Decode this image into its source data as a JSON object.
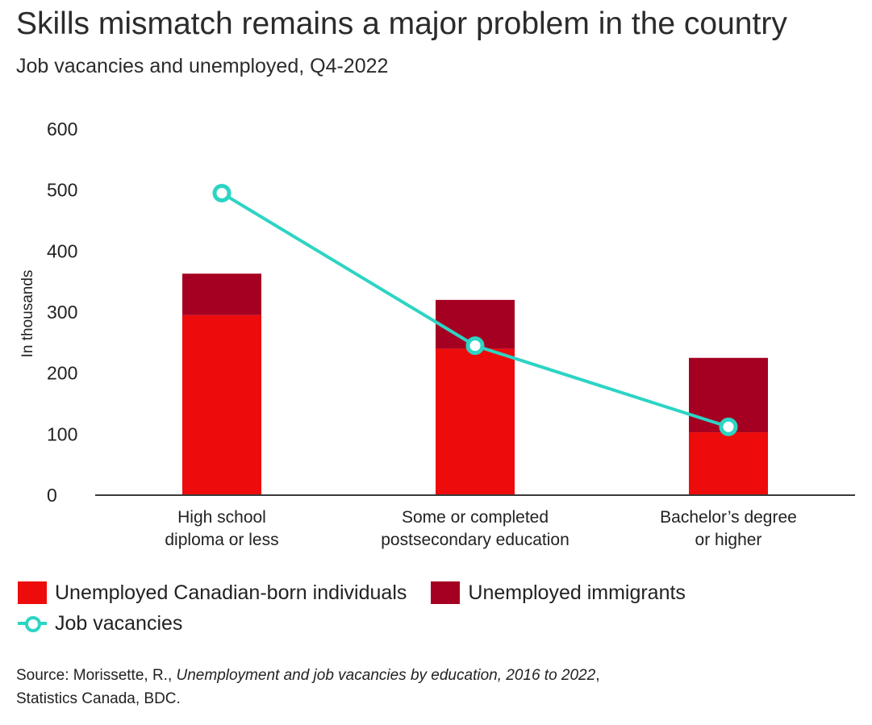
{
  "chart_data": {
    "type": "bar",
    "stacked": true,
    "title": "Skills mismatch remains a major problem in the country",
    "subtitle": "Job vacancies and unemployed, Q4-2022",
    "ylabel": "In thousands",
    "xlabel": "",
    "ylim": [
      0,
      600
    ],
    "yticks": [
      0,
      100,
      200,
      300,
      400,
      500,
      600
    ],
    "categories": [
      [
        "High school",
        "diploma or less"
      ],
      [
        "Some or completed",
        "postsecondary education"
      ],
      [
        "Bachelor’s degree",
        "or higher"
      ]
    ],
    "series": [
      {
        "name": "Unemployed Canadian-born individuals",
        "kind": "bar",
        "color": "#ee0b0b",
        "values": [
          295,
          240,
          103
        ]
      },
      {
        "name": "Unemployed immigrants",
        "kind": "bar",
        "color": "#a50021",
        "values": [
          68,
          80,
          122
        ]
      },
      {
        "name": "Job vacancies",
        "kind": "line",
        "color": "#2dd4c4",
        "values": [
          495,
          245,
          112
        ]
      }
    ],
    "grid": false,
    "legend_position": "bottom-left"
  },
  "source": {
    "prefix": "Source: Morissette, R., ",
    "title": "Unemployment and job vacancies by education, 2016 to 2022",
    "suffix": ",",
    "line2": "Statistics Canada, BDC."
  }
}
